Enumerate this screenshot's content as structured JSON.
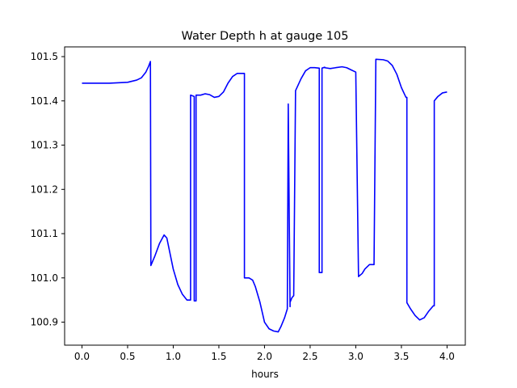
{
  "chart_data": {
    "type": "line",
    "title": "Water Depth h at gauge 105",
    "xlabel": "hours",
    "ylabel": "",
    "xlim": [
      -0.19,
      4.2
    ],
    "ylim": [
      100.848,
      101.522
    ],
    "xticks": [
      0.0,
      0.5,
      1.0,
      1.5,
      2.0,
      2.5,
      3.0,
      3.5,
      4.0
    ],
    "xtick_labels": [
      "0.0",
      "0.5",
      "1.0",
      "1.5",
      "2.0",
      "2.5",
      "3.0",
      "3.5",
      "4.0"
    ],
    "yticks": [
      100.9,
      101.0,
      101.1,
      101.2,
      101.3,
      101.4,
      101.5
    ],
    "ytick_labels": [
      "100.9",
      "101.0",
      "101.1",
      "101.2",
      "101.3",
      "101.4",
      "101.5"
    ],
    "grid": false,
    "series": [
      {
        "color": "#0000ff",
        "x": [
          0.0,
          0.3,
          0.5,
          0.6,
          0.65,
          0.7,
          0.73,
          0.75,
          0.755,
          0.8,
          0.85,
          0.9,
          0.93,
          0.96,
          1.0,
          1.05,
          1.1,
          1.15,
          1.19,
          1.19,
          1.23,
          1.23,
          1.25,
          1.25,
          1.3,
          1.35,
          1.4,
          1.45,
          1.5,
          1.55,
          1.6,
          1.65,
          1.7,
          1.75,
          1.78,
          1.78,
          1.83,
          1.87,
          1.9,
          1.95,
          2.0,
          2.05,
          2.1,
          2.15,
          2.18,
          2.22,
          2.25,
          2.26,
          2.26,
          2.28,
          2.28,
          2.3,
          2.32,
          2.34,
          2.34,
          2.4,
          2.45,
          2.5,
          2.55,
          2.6,
          2.6,
          2.63,
          2.63,
          2.66,
          2.66,
          2.72,
          2.78,
          2.85,
          2.9,
          2.95,
          3.0,
          3.03,
          3.03,
          3.07,
          3.1,
          3.15,
          3.2,
          3.22,
          3.22,
          3.3,
          3.35,
          3.4,
          3.45,
          3.5,
          3.55,
          3.56,
          3.56,
          3.6,
          3.65,
          3.7,
          3.75,
          3.8,
          3.85,
          3.86,
          3.86,
          3.9,
          3.95,
          4.0
        ],
        "y": [
          101.44,
          101.44,
          101.442,
          101.447,
          101.452,
          101.465,
          101.478,
          101.489,
          101.028,
          101.05,
          101.078,
          101.097,
          101.09,
          101.06,
          101.02,
          100.985,
          100.963,
          100.95,
          100.95,
          101.413,
          101.41,
          100.948,
          100.948,
          101.413,
          101.413,
          101.416,
          101.414,
          101.408,
          101.41,
          101.42,
          101.44,
          101.455,
          101.462,
          101.462,
          101.462,
          101.0,
          101.0,
          100.995,
          100.98,
          100.945,
          100.9,
          100.885,
          100.88,
          100.878,
          100.89,
          100.91,
          100.93,
          101.38,
          101.393,
          100.935,
          100.945,
          100.955,
          100.96,
          101.423,
          101.423,
          101.45,
          101.468,
          101.475,
          101.475,
          101.474,
          101.012,
          101.012,
          101.474,
          101.476,
          101.475,
          101.473,
          101.475,
          101.477,
          101.475,
          101.47,
          101.465,
          101.003,
          101.003,
          101.01,
          101.02,
          101.03,
          101.03,
          101.494,
          101.494,
          101.493,
          101.49,
          101.48,
          101.46,
          101.43,
          101.408,
          101.408,
          100.944,
          100.93,
          100.915,
          100.905,
          100.91,
          100.925,
          100.937,
          100.937,
          101.4,
          101.41,
          101.418,
          101.42
        ]
      }
    ]
  }
}
